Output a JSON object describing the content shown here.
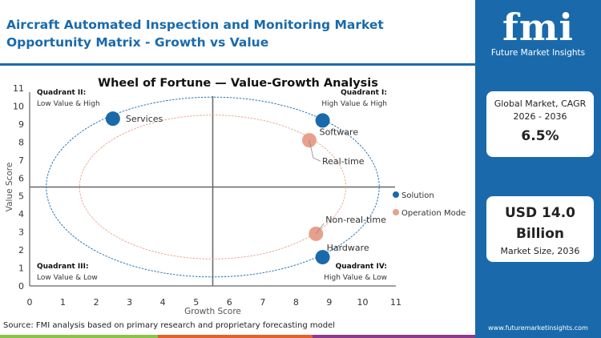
{
  "header": {
    "title": "Aircraft Automated Inspection and Monitoring Market  Opportunity Matrix - Growth vs Value"
  },
  "sidebar": {
    "logo_text": "fmi",
    "logo_sub": "Future Market Insights",
    "cagr_label": "Global Market, CAGR 2026 - 2036",
    "cagr_value": "6.5%",
    "size_value": "USD 14.0 Billion",
    "size_label": "Market Size, 2036",
    "url": "www.futuremarketinsights.com",
    "color": "#1a6aab"
  },
  "footer": {
    "source": "Source: FMI analysis based on primary research and proprietary forecasting model"
  },
  "chart_data": {
    "type": "scatter",
    "title": "Wheel of Fortune — Value-Growth  Analysis",
    "xlabel": "Growth Score",
    "ylabel": "Value Score",
    "xlim": [
      0,
      11
    ],
    "ylim": [
      0,
      11
    ],
    "xticks": [
      "0",
      "1",
      "2",
      "3",
      "4",
      "5",
      "6",
      "7",
      "8",
      "9",
      "10",
      "11"
    ],
    "yticks": [
      "0",
      "1",
      "2",
      "3",
      "4",
      "5",
      "6",
      "7",
      "8",
      "9",
      "10",
      "11"
    ],
    "quadrant_lines": {
      "x": 5.5,
      "y": 5.5
    },
    "quadrants": [
      {
        "title": "Quadrant II:",
        "label": "Low Value & High",
        "pos": "top-left"
      },
      {
        "title": "Quadrant I:",
        "label": "High Value & High",
        "pos": "top-right"
      },
      {
        "title": "Quadrant III:",
        "label": "Low Value & Low",
        "pos": "bottom-left"
      },
      {
        "title": "Quadrant IV:",
        "label": "High Value & Low",
        "pos": "bottom-right"
      }
    ],
    "legend_position": "right",
    "series": [
      {
        "name": "Solution",
        "color": "#1a6aab",
        "ring_radius": 5,
        "points": [
          {
            "label": "Services",
            "x": 2.5,
            "y": 9.3
          },
          {
            "label": "Software",
            "x": 8.8,
            "y": 9.2
          },
          {
            "label": "Hardware",
            "x": 8.8,
            "y": 1.6
          }
        ]
      },
      {
        "name": "Operation Mode",
        "color": "#e8a08c",
        "ring_radius": 4,
        "points": [
          {
            "label": "Real-time",
            "x": 8.4,
            "y": 8.1
          },
          {
            "label": "Non-real-time",
            "x": 8.6,
            "y": 2.9
          }
        ]
      }
    ]
  }
}
